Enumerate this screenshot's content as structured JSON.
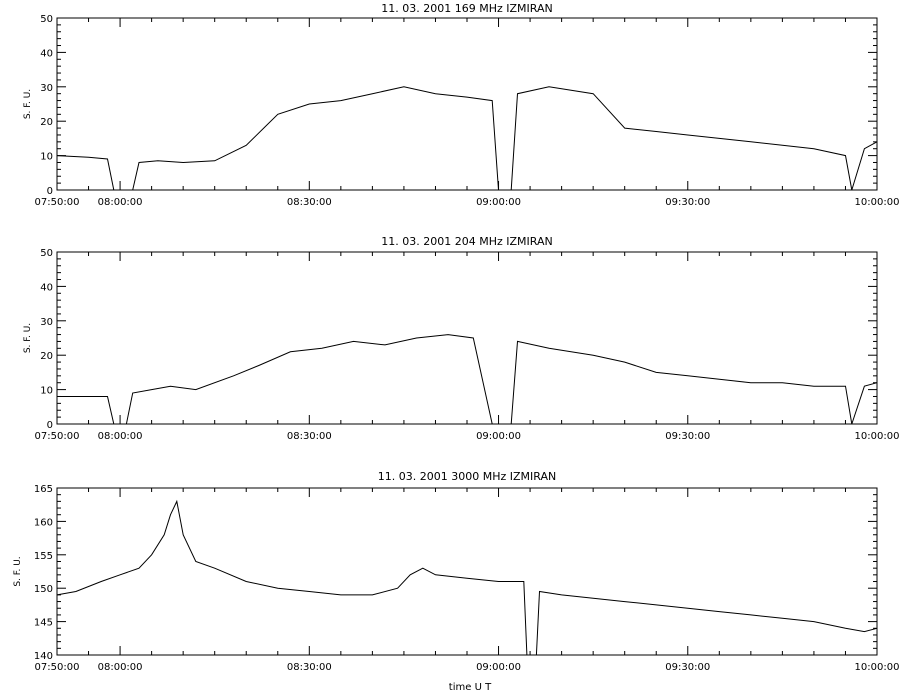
{
  "xlabel": "time  U T",
  "ylabel": "S. F. U.",
  "chart_data": [
    {
      "type": "line",
      "title": "11.  03.  2001    169 MHz    IZMIRAN",
      "xlim": [
        "07:50:00",
        "10:00:00"
      ],
      "ylim": [
        0,
        50
      ],
      "xticks": [
        "07:50:00",
        "08:00:00",
        "08:30:00",
        "09:00:00",
        "09:30:00",
        "10:00:00"
      ],
      "yticks": [
        0,
        10,
        20,
        30,
        40,
        50
      ],
      "series": [
        {
          "x": [
            "07:50:00",
            "07:55:00",
            "07:58:00",
            "07:59:00",
            "08:02:00",
            "08:03:00",
            "08:06:00",
            "08:10:00",
            "08:15:00",
            "08:20:00",
            "08:25:00",
            "08:30:00",
            "08:35:00",
            "08:40:00",
            "08:45:00",
            "08:50:00",
            "08:55:00",
            "08:59:00",
            "09:00:00",
            "09:02:00",
            "09:03:00",
            "09:08:00",
            "09:15:00",
            "09:20:00",
            "09:25:00",
            "09:30:00",
            "09:35:00",
            "09:40:00",
            "09:45:00",
            "09:50:00",
            "09:55:00",
            "09:56:00",
            "09:58:00",
            "10:00:00"
          ],
          "values": [
            10,
            9.5,
            9,
            0,
            0,
            8,
            8.5,
            8,
            8.5,
            13,
            22,
            25,
            26,
            28,
            30,
            28,
            27,
            26,
            0,
            0,
            28,
            30,
            28,
            18,
            17,
            16,
            15,
            14,
            13,
            12,
            10,
            0,
            12,
            14
          ]
        }
      ]
    },
    {
      "type": "line",
      "title": "11.  03.  2001    204 MHz    IZMIRAN",
      "xlim": [
        "07:50:00",
        "10:00:00"
      ],
      "ylim": [
        0,
        50
      ],
      "xticks": [
        "07:50:00",
        "08:00:00",
        "08:30:00",
        "09:00:00",
        "09:30:00",
        "10:00:00"
      ],
      "yticks": [
        0,
        10,
        20,
        30,
        40,
        50
      ],
      "series": [
        {
          "x": [
            "07:50:00",
            "07:55:00",
            "07:58:00",
            "07:59:00",
            "08:01:00",
            "08:02:00",
            "08:05:00",
            "08:08:00",
            "08:12:00",
            "08:18:00",
            "08:22:00",
            "08:27:00",
            "08:32:00",
            "08:37:00",
            "08:42:00",
            "08:47:00",
            "08:52:00",
            "08:56:00",
            "08:59:00",
            "09:02:00",
            "09:03:00",
            "09:08:00",
            "09:15:00",
            "09:20:00",
            "09:25:00",
            "09:30:00",
            "09:35:00",
            "09:40:00",
            "09:45:00",
            "09:50:00",
            "09:55:00",
            "09:56:00",
            "09:58:00",
            "10:00:00"
          ],
          "values": [
            8,
            8,
            8,
            0,
            0,
            9,
            10,
            11,
            10,
            14,
            17,
            21,
            22,
            24,
            23,
            25,
            26,
            25,
            0,
            0,
            24,
            22,
            20,
            18,
            15,
            14,
            13,
            12,
            12,
            11,
            11,
            0,
            11,
            12
          ]
        }
      ]
    },
    {
      "type": "line",
      "title": "11.  03.  2001    3000 MHz    IZMIRAN",
      "xlim": [
        "07:50:00",
        "10:00:00"
      ],
      "ylim": [
        140,
        165
      ],
      "xticks": [
        "07:50:00",
        "08:00:00",
        "08:30:00",
        "09:00:00",
        "09:30:00",
        "10:00:00"
      ],
      "yticks": [
        140,
        145,
        150,
        155,
        160,
        165
      ],
      "series": [
        {
          "x": [
            "07:50:00",
            "07:53:00",
            "07:57:00",
            "08:00:00",
            "08:03:00",
            "08:05:00",
            "08:07:00",
            "08:08:00",
            "08:09:00",
            "08:10:00",
            "08:12:00",
            "08:15:00",
            "08:20:00",
            "08:25:00",
            "08:30:00",
            "08:35:00",
            "08:40:00",
            "08:44:00",
            "08:46:00",
            "08:48:00",
            "08:50:00",
            "08:55:00",
            "09:00:00",
            "09:04:00",
            "09:04:30",
            "09:06:00",
            "09:06:30",
            "09:10:00",
            "09:15:00",
            "09:20:00",
            "09:25:00",
            "09:30:00",
            "09:35:00",
            "09:40:00",
            "09:45:00",
            "09:50:00",
            "09:55:00",
            "09:58:00",
            "10:00:00"
          ],
          "values": [
            149,
            149.5,
            151,
            152,
            153,
            155,
            158,
            161,
            163,
            158,
            154,
            153,
            151,
            150,
            149.5,
            149,
            149,
            150,
            152,
            153,
            152,
            151.5,
            151,
            151,
            140,
            140,
            149.5,
            149,
            148.5,
            148,
            147.5,
            147,
            146.5,
            146,
            145.5,
            145,
            144,
            143.5,
            144
          ]
        }
      ]
    }
  ]
}
